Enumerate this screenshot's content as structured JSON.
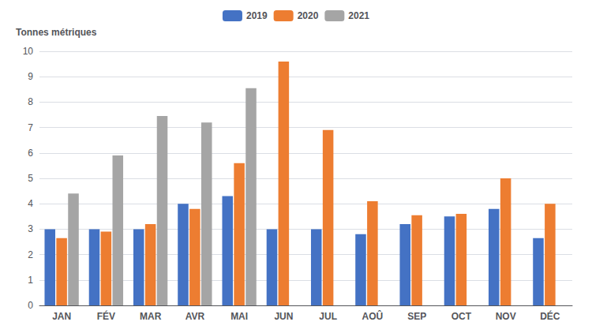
{
  "chart_data": {
    "type": "bar",
    "ylabel": "Tonnes métriques",
    "categories": [
      "JAN",
      "FÉV",
      "MAR",
      "AVR",
      "MAI",
      "JUN",
      "JUL",
      "AOÛ",
      "SEP",
      "OCT",
      "NOV",
      "DÉC"
    ],
    "series": [
      {
        "name": "2019",
        "color": "#4472C4",
        "values": [
          3.0,
          3.0,
          3.0,
          4.0,
          4.3,
          3.0,
          3.0,
          2.8,
          3.2,
          3.5,
          3.8,
          2.65
        ]
      },
      {
        "name": "2020",
        "color": "#ED7D31",
        "values": [
          2.65,
          2.9,
          3.2,
          3.8,
          5.6,
          9.6,
          6.9,
          4.1,
          3.55,
          3.6,
          5.0,
          4.0
        ]
      },
      {
        "name": "2021",
        "color": "#A5A5A5",
        "values": [
          4.4,
          5.9,
          7.45,
          7.2,
          8.55,
          null,
          null,
          null,
          null,
          null,
          null,
          null
        ]
      }
    ],
    "ylim": [
      0,
      10
    ],
    "yticks": [
      0,
      1,
      2,
      3,
      4,
      5,
      6,
      7,
      8,
      9,
      10
    ],
    "grid": true,
    "legend": "top"
  }
}
